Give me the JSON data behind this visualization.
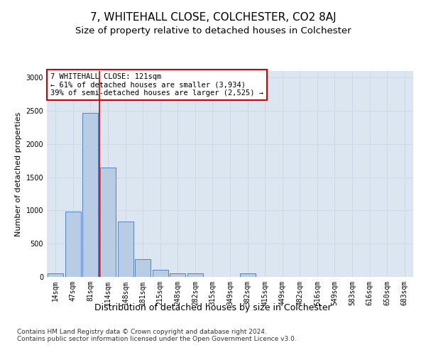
{
  "title": "7, WHITEHALL CLOSE, COLCHESTER, CO2 8AJ",
  "subtitle": "Size of property relative to detached houses in Colchester",
  "xlabel": "Distribution of detached houses by size in Colchester",
  "ylabel": "Number of detached properties",
  "categories": [
    "14sqm",
    "47sqm",
    "81sqm",
    "114sqm",
    "148sqm",
    "181sqm",
    "215sqm",
    "248sqm",
    "282sqm",
    "315sqm",
    "349sqm",
    "382sqm",
    "415sqm",
    "449sqm",
    "482sqm",
    "516sqm",
    "549sqm",
    "583sqm",
    "616sqm",
    "650sqm",
    "683sqm"
  ],
  "values": [
    50,
    980,
    2470,
    1650,
    830,
    270,
    110,
    55,
    50,
    0,
    0,
    50,
    0,
    0,
    0,
    0,
    0,
    0,
    0,
    0,
    0
  ],
  "bar_color": "#b8cce4",
  "bar_edge_color": "#4472c4",
  "grid_color": "#d0d8e8",
  "background_color": "#dce6f1",
  "annotation_box_text": "7 WHITEHALL CLOSE: 121sqm\n← 61% of detached houses are smaller (3,934)\n39% of semi-detached houses are larger (2,525) →",
  "annotation_box_color": "#ffffff",
  "annotation_box_edge_color": "#cc0000",
  "vline_color": "#cc0000",
  "footer_text": "Contains HM Land Registry data © Crown copyright and database right 2024.\nContains public sector information licensed under the Open Government Licence v3.0.",
  "ylim": [
    0,
    3100
  ],
  "yticks": [
    0,
    500,
    1000,
    1500,
    2000,
    2500,
    3000
  ],
  "title_fontsize": 11,
  "subtitle_fontsize": 9.5,
  "xlabel_fontsize": 9,
  "ylabel_fontsize": 8,
  "tick_fontsize": 7,
  "annotation_fontsize": 7.5,
  "footer_fontsize": 6.5
}
